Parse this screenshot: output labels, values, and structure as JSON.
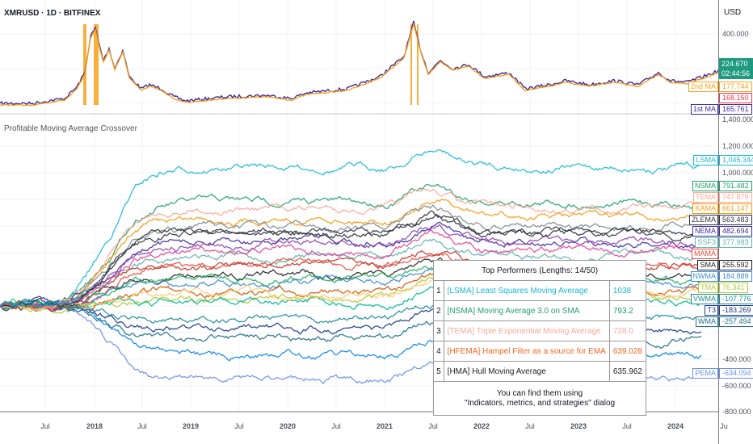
{
  "header": {
    "symbol": "XMRUSD · 1D · BITFINEX",
    "currency": "USD"
  },
  "indicator": {
    "title": "Profitable Moving Average Crossover"
  },
  "price_axis": {
    "top": [
      "400.000"
    ],
    "bottom": [
      "1,400.000",
      "1,200.000",
      "1,000.000",
      "-400.000",
      "-600.000",
      "-800.000"
    ]
  },
  "price_box": {
    "price": "224.670",
    "countdown": "02:44:56",
    "color": "#1e9a7e"
  },
  "top_tags": [
    {
      "label": "2nd MA",
      "value": "177.744",
      "color": "#f7a21b"
    },
    {
      "label": "",
      "value": "168.150",
      "color": "#f23645"
    },
    {
      "label": "1st MA",
      "value": "165.761",
      "color": "#3f2a9e"
    }
  ],
  "series_tags": [
    {
      "label": "LSMA",
      "value": "1,045.344",
      "color": "#16b9d4"
    },
    {
      "label": "NSMA",
      "value": "791.482",
      "color": "#22a06b"
    },
    {
      "label": "TEMA",
      "value": "747.879",
      "color": "#f7a898"
    },
    {
      "label": "KAMA",
      "value": "661.147",
      "color": "#f39c12"
    },
    {
      "label": "ZLEMA",
      "value": "563.483",
      "color": "#333344"
    },
    {
      "label": "NEMA",
      "value": "482.694",
      "color": "#3f2a9e"
    },
    {
      "label": "SSF3",
      "value": "377.983",
      "color": "#5fb3a8"
    },
    {
      "label": "MAMA",
      "value": "",
      "color": "#e74c3c"
    },
    {
      "label": "SMA",
      "value": "255.592",
      "color": "#222222"
    },
    {
      "label": "NWMA",
      "value": "184.889",
      "color": "#3d8bd6"
    },
    {
      "label": "TMA",
      "value": "76.341",
      "color": "#b5c93a"
    },
    {
      "label": "VWMA",
      "value": "-107.776",
      "color": "#1f8a99"
    },
    {
      "label": "T3",
      "value": "-183.269",
      "color": "#1c3a8a"
    },
    {
      "label": "WMA",
      "value": "-257.494",
      "color": "#1f6f8a"
    },
    {
      "label": "PEMA",
      "value": "-634.094",
      "color": "#6c8ee8"
    }
  ],
  "time_axis": [
    "Jul",
    "2018",
    "Jul",
    "2019",
    "Jul",
    "2020",
    "Jul",
    "2021",
    "Jul",
    "2022",
    "Jul",
    "2023",
    "Jul",
    "2024",
    "Ju"
  ],
  "top_performers": {
    "title": "Top Performers (Lengths: 14/50)",
    "rows": [
      {
        "rank": "1",
        "name": "[LSMA] Least Squares Moving Average",
        "value": "1038",
        "color": "#16b9d4"
      },
      {
        "rank": "2",
        "name": "[NSMA] Moving Average 3.0 on SMA",
        "value": "793.2",
        "color": "#22a06b"
      },
      {
        "rank": "3",
        "name": "[TEMA] Triple Exponential Moving Average",
        "value": "728.0",
        "color": "#f7a898"
      },
      {
        "rank": "4",
        "name": "[HFEMA] Hampel Filter as a source for EMA",
        "value": "639.028",
        "color": "#f26522"
      },
      {
        "rank": "5",
        "name": "[HMA] Hull Moving Average",
        "value": "635.962",
        "color": "#222222"
      }
    ],
    "footer_line1": "You can find them using",
    "footer_line2": "\"Indicators, metrics, and strategies\" dialog"
  }
}
